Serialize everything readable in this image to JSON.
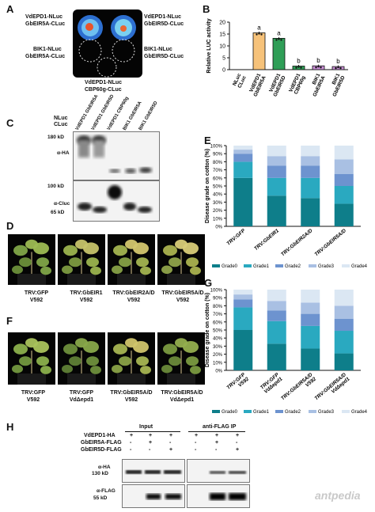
{
  "panels": {
    "A": "A",
    "B": "B",
    "C": "C",
    "D": "D",
    "E": "E",
    "F": "F",
    "G": "G",
    "H": "H"
  },
  "panel_a": {
    "tl1": "VdEPD1-NLuc",
    "tl2": "GbEIR5A-CLuc",
    "tr1": "VdEPD1-NLuc",
    "tr2": "GbEIR5D-CLuc",
    "ml1": "BIK1-NLuc",
    "ml2": "GbEIR5A-CLuc",
    "mr1": "BIK1-NLuc",
    "mr2": "GbEIR5D-CLuc",
    "b1": "VdEPD1-NLuc",
    "b2": "CBP60g-CLuc"
  },
  "chart_data": [
    {
      "type": "bar",
      "panel": "B",
      "ylabel": "Relative LUC activity",
      "ylim": [
        0,
        20
      ],
      "yticks": [
        0,
        5,
        10,
        15,
        20
      ],
      "categories": [
        "NLuc CLuc",
        "VdEPD1 GbEIR5A",
        "VdEPD1 GbEIR5D",
        "VdEPD1 CBP60g",
        "BIK1 GbEIR5A",
        "BIK1 GbEIR5D"
      ],
      "values": [
        0,
        15.5,
        13.2,
        1.5,
        1.6,
        1.3
      ],
      "letters": [
        "",
        "a",
        "a",
        "b",
        "b",
        "b"
      ],
      "colors": [
        "#ffffff",
        "#f6c27a",
        "#2f9e57",
        "#2f9e57",
        "#c98fd6",
        "#c98fd6"
      ]
    },
    {
      "type": "bar",
      "stacked": true,
      "panel": "E",
      "ylabel": "Disease grade on cotton (%)",
      "ylim": [
        0,
        100
      ],
      "yticks": [
        0,
        10,
        20,
        30,
        40,
        50,
        60,
        70,
        80,
        90,
        100
      ],
      "categories": [
        "TRV:GFP",
        "TRV:GbEIR1",
        "TRV:GbEIR2A/D",
        "TRV:GbEIR5A/D"
      ],
      "series": [
        {
          "name": "Grade0",
          "values": [
            60,
            38,
            35,
            28
          ]
        },
        {
          "name": "Grade1",
          "values": [
            20,
            22,
            25,
            22
          ]
        },
        {
          "name": "Grade2",
          "values": [
            10,
            15,
            15,
            15
          ]
        },
        {
          "name": "Grade3",
          "values": [
            5,
            12,
            12,
            18
          ]
        },
        {
          "name": "Grade4",
          "values": [
            5,
            13,
            13,
            17
          ]
        }
      ],
      "colors": [
        "#0e7e8a",
        "#2aa9c0",
        "#6d93cf",
        "#a9c0e3",
        "#dbe7f3"
      ]
    },
    {
      "type": "bar",
      "stacked": true,
      "panel": "G",
      "ylabel": "Disease grade on cotton (%)",
      "ylim": [
        0,
        100
      ],
      "yticks": [
        0,
        10,
        20,
        30,
        40,
        50,
        60,
        70,
        80,
        90,
        100
      ],
      "categories": [
        "TRV:GFP V592",
        "TRV:GFP VdΔepd1",
        "TRV:GbEIR5A/D V592",
        "TRV:GbEIR5A/D VdΔepd1"
      ],
      "series": [
        {
          "name": "Grade0",
          "values": [
            50,
            33,
            27,
            21
          ]
        },
        {
          "name": "Grade1",
          "values": [
            28,
            28,
            28,
            28
          ]
        },
        {
          "name": "Grade2",
          "values": [
            10,
            13,
            15,
            15
          ]
        },
        {
          "name": "Grade3",
          "values": [
            6,
            12,
            14,
            16
          ]
        },
        {
          "name": "Grade4",
          "values": [
            6,
            14,
            16,
            20
          ]
        }
      ],
      "colors": [
        "#0e7e8a",
        "#2aa9c0",
        "#6d93cf",
        "#a9c0e3",
        "#dbe7f3"
      ]
    }
  ],
  "panel_c": {
    "nluc": "NLuc",
    "cluc": "CLuc",
    "lanes": [
      "VdEPD1 GbEIR5A",
      "VdEPD1 GbEIR5D",
      "VdEPD1 CBP60g",
      "BIK1 GbEIR5A",
      "BIK1 GbEIR5D"
    ],
    "m180": "180 kD",
    "m100": "100 kD",
    "m65": "65 kD",
    "aha": "α-HA",
    "acluc": "α-Cluc"
  },
  "panel_d": {
    "c1a": "TRV:GFP",
    "c1b": "V592",
    "c2a": "TRV:GbEIR1",
    "c2b": "V592",
    "c3a": "TRV:GbEIR2A/D",
    "c3b": "V592",
    "c4a": "TRV:GbEIR5A/D",
    "c4b": "V592"
  },
  "panel_f": {
    "c1a": "TRV:GFP",
    "c1b": "V592",
    "c2a": "TRV:GFP",
    "c2b": "VdΔepd1",
    "c3a": "TRV:GbEIR5A/D",
    "c3b": "V592",
    "c4a": "TRV:GbEIR5A/D",
    "c4b": "VdΔepd1"
  },
  "panel_h": {
    "input": "Input",
    "ip": "anti-FLAG IP",
    "r1": "VdEPD1-HA",
    "r2": "GbEIR5A-FLAG",
    "r3": "GbEIR5D-FLAG",
    "row1": [
      "+",
      "+",
      "+",
      "+",
      "+",
      "+"
    ],
    "row2": [
      "-",
      "+",
      "-",
      "-",
      "+",
      "-"
    ],
    "row3": [
      "-",
      "-",
      "+",
      "-",
      "-",
      "+"
    ],
    "aha": "α-HA",
    "m130": "130 kD",
    "aflag": "α-FLAG",
    "m55": "55 kD"
  },
  "watermark": "antpedia"
}
